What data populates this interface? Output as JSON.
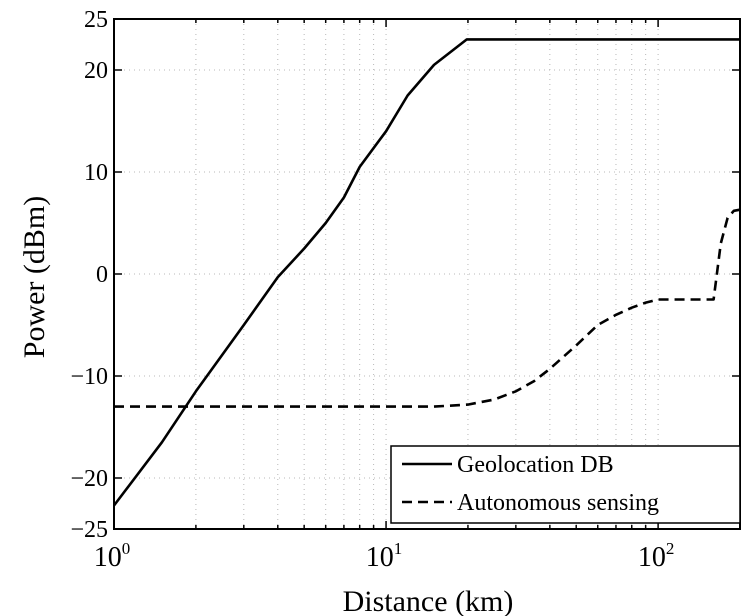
{
  "chart_data": {
    "type": "line",
    "title": "",
    "xlabel": "Distance (km)",
    "ylabel": "Power (dBm)",
    "xscale": "log",
    "xlim": [
      1,
      200
    ],
    "ylim": [
      -25,
      25
    ],
    "grid": true,
    "legend_position": "bottom-right",
    "x_ticks": [
      {
        "value": 1,
        "base": "10",
        "exp": "0"
      },
      {
        "value": 10,
        "base": "10",
        "exp": "1"
      },
      {
        "value": 100,
        "base": "10",
        "exp": "2"
      }
    ],
    "y_ticks": [
      {
        "value": -25,
        "label": "−25"
      },
      {
        "value": -20,
        "label": "−20"
      },
      {
        "value": -10,
        "label": "−10"
      },
      {
        "value": 0,
        "label": "0"
      },
      {
        "value": 10,
        "label": "10"
      },
      {
        "value": 20,
        "label": "20"
      },
      {
        "value": 25,
        "label": "25"
      }
    ],
    "series": [
      {
        "name": "Geolocation DB",
        "style": "solid",
        "color": "#000000",
        "x": [
          1,
          1.5,
          2,
          3,
          4,
          5,
          6,
          7,
          8,
          10,
          12,
          15,
          19.8,
          30,
          50,
          100,
          150,
          200
        ],
        "y": [
          -22.7,
          -16.5,
          -11.5,
          -5,
          -0.3,
          2.5,
          5,
          7.5,
          10.5,
          14,
          17.5,
          20.5,
          23,
          23,
          23,
          23,
          23,
          23
        ]
      },
      {
        "name": "Autonomous sensing",
        "style": "dashed",
        "color": "#000000",
        "x": [
          1,
          2,
          5,
          10,
          15,
          20,
          25,
          30,
          35,
          40,
          50,
          60,
          70,
          80,
          90,
          100,
          130,
          160,
          170,
          180,
          190,
          200
        ],
        "y": [
          -13,
          -13,
          -13,
          -13,
          -13,
          -12.8,
          -12.3,
          -11.5,
          -10.5,
          -9.3,
          -7,
          -5,
          -4,
          -3.3,
          -2.8,
          -2.5,
          -2.5,
          -2.5,
          3,
          5.5,
          6.2,
          6.3
        ]
      }
    ]
  }
}
